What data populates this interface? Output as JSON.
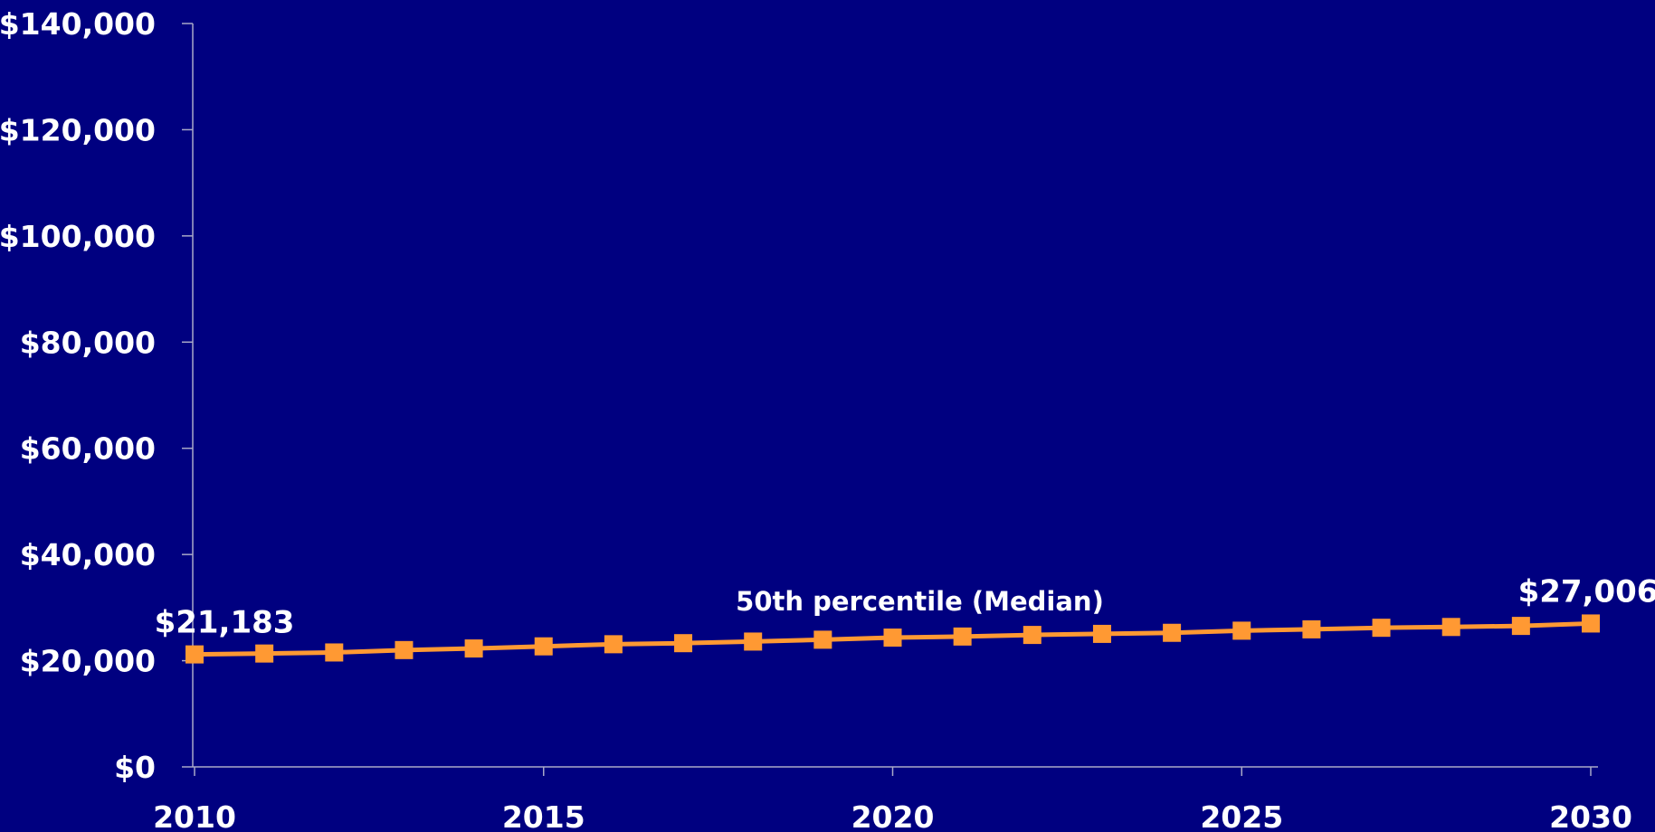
{
  "chart_data": {
    "type": "line",
    "title": "",
    "xlabel": "",
    "ylabel": "",
    "xlim": [
      2010,
      2030
    ],
    "ylim": [
      0,
      140000
    ],
    "grid": false,
    "x_ticks": [
      2010,
      2015,
      2020,
      2025,
      2030
    ],
    "x_tick_labels": [
      "2010",
      "2015",
      "2020",
      "2025",
      "2030"
    ],
    "y_ticks": [
      0,
      20000,
      40000,
      60000,
      80000,
      100000,
      120000,
      140000
    ],
    "y_tick_labels": [
      "$0",
      "$20,000",
      "$40,000",
      "$60,000",
      "$80,000",
      "$100,000",
      "$120,000",
      "$140,000"
    ],
    "x": [
      2010,
      2011,
      2012,
      2013,
      2014,
      2015,
      2016,
      2017,
      2018,
      2019,
      2020,
      2021,
      2022,
      2023,
      2024,
      2025,
      2026,
      2027,
      2028,
      2029,
      2030
    ],
    "series": [
      {
        "name": "50th percentile (Median)",
        "color": "#ff9933",
        "marker": "square",
        "values": [
          21183,
          21350,
          21550,
          22000,
          22300,
          22700,
          23100,
          23300,
          23600,
          23950,
          24350,
          24550,
          24850,
          25050,
          25250,
          25650,
          25900,
          26200,
          26350,
          26550,
          27006
        ]
      }
    ],
    "data_labels": [
      {
        "x": 2010,
        "y": 21183,
        "text": "$21,183"
      },
      {
        "x": 2030,
        "y": 27006,
        "text": "$27,006"
      }
    ],
    "colors": {
      "background": "#000080",
      "axis": "#a9a9c8",
      "text": "#ffffff",
      "series": "#ff9933"
    }
  }
}
